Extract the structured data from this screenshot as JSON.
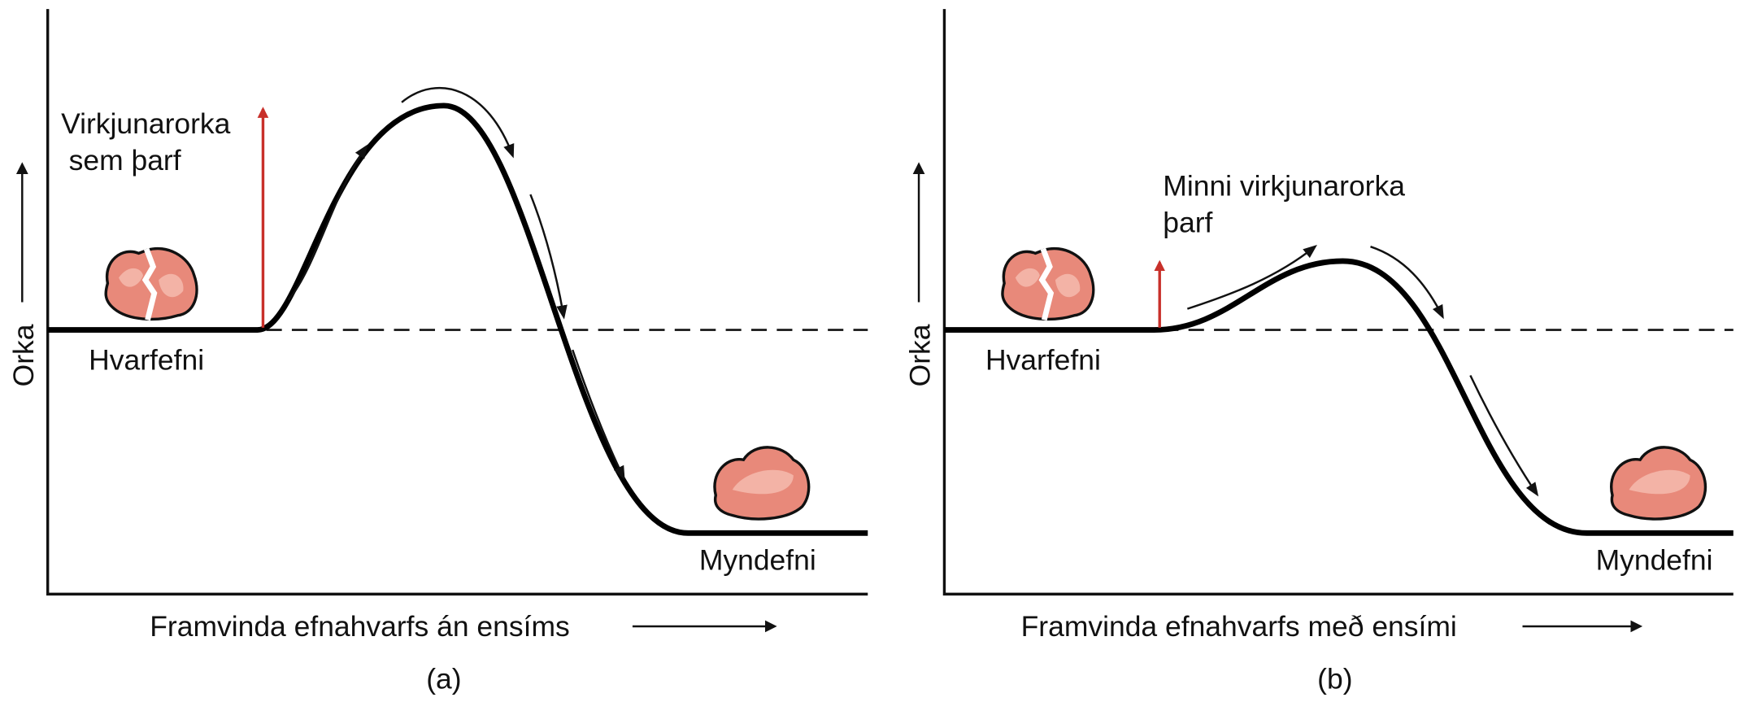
{
  "panels": [
    {
      "y_label": "Orka",
      "annotation": [
        "Virkjunarorka",
        "sem þarf"
      ],
      "reactant": "Hvarfefni",
      "product": "Myndefni",
      "x_label": "Framvinda efnahvarfs án ensíms",
      "caption": "(a)"
    },
    {
      "y_label": "Orka",
      "annotation": [
        "Minni virkjunarorka",
        "þarf"
      ],
      "reactant": "Hvarfefni",
      "product": "Myndefni",
      "x_label": "Framvinda efnahvarfs með ensími",
      "caption": "(b)"
    }
  ]
}
